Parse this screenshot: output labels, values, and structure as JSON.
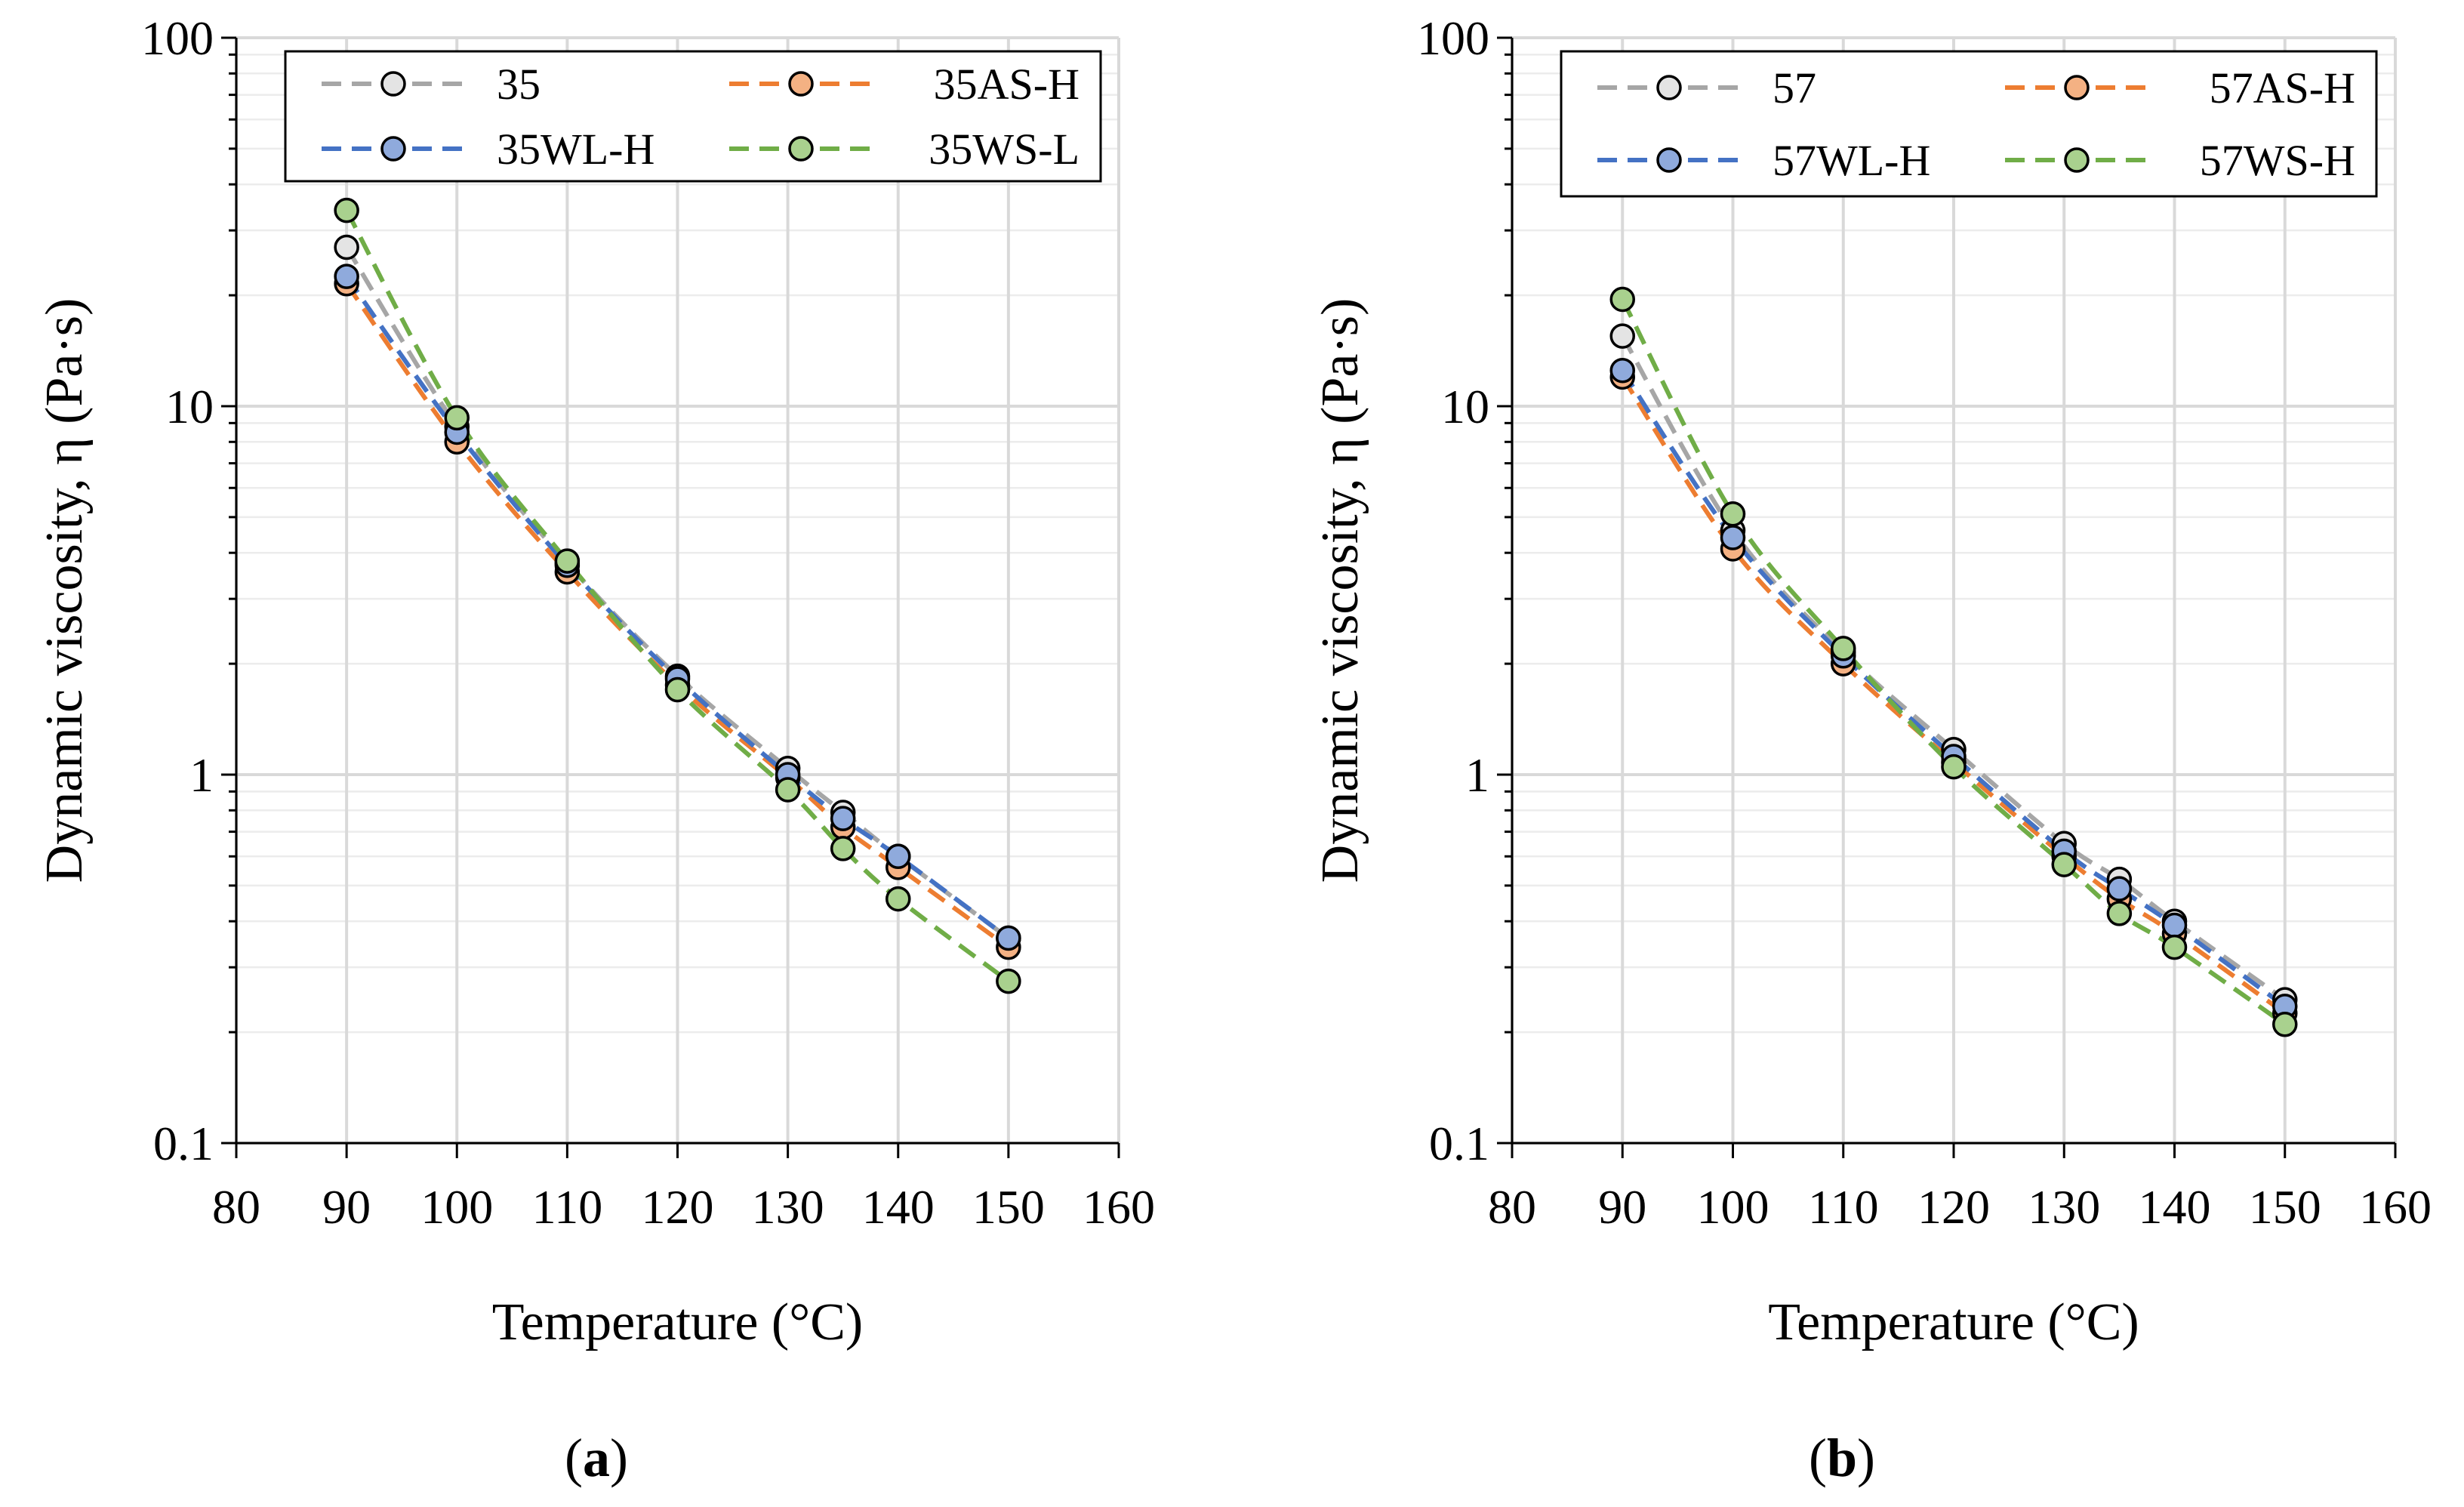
{
  "chart_data": [
    {
      "type": "line",
      "panel_label": "(a)",
      "panel_letter": "a",
      "title": "",
      "xlabel": "Temperature (°C)",
      "ylabel": "Dynamic viscosity, η (Pa·s)",
      "xlim": [
        80,
        160
      ],
      "ylim": [
        0.1,
        100
      ],
      "yscale": "log",
      "xticks": [
        "80",
        "90",
        "100",
        "110",
        "120",
        "130",
        "140",
        "150",
        "160"
      ],
      "yticks": [
        "0.1",
        "1",
        "10",
        "100"
      ],
      "grid": true,
      "legend_position": "top",
      "x": [
        90,
        100,
        110,
        120,
        130,
        135,
        140,
        150
      ],
      "series": [
        {
          "name": "35",
          "color": "#a6a6a6",
          "fill": "#e4e4e4",
          "values": [
            27,
            8.8,
            3.75,
            1.85,
            1.04,
            0.79,
            0.6,
            0.36
          ]
        },
        {
          "name": "35AS-H",
          "color": "#ed7d31",
          "fill": "#f4b183",
          "values": [
            21.5,
            8.0,
            3.55,
            1.75,
            0.98,
            0.72,
            0.56,
            0.34
          ]
        },
        {
          "name": "35WL-H",
          "color": "#4472c4",
          "fill": "#8faadc",
          "values": [
            22.5,
            8.5,
            3.7,
            1.82,
            1.0,
            0.76,
            0.6,
            0.36
          ]
        },
        {
          "name": "35WS-L",
          "color": "#70ad47",
          "fill": "#a9d18e",
          "values": [
            34,
            9.3,
            3.8,
            1.7,
            0.91,
            0.63,
            0.46,
            0.275
          ]
        }
      ]
    },
    {
      "type": "line",
      "panel_label": "(b)",
      "panel_letter": "b",
      "title": "",
      "xlabel": "Temperature (°C)",
      "ylabel": "Dynamic viscosity, η (Pa·s)",
      "xlim": [
        80,
        160
      ],
      "ylim": [
        0.1,
        100
      ],
      "yscale": "log",
      "xticks": [
        "80",
        "90",
        "100",
        "110",
        "120",
        "130",
        "140",
        "150",
        "160"
      ],
      "yticks": [
        "0.1",
        "1",
        "10",
        "100"
      ],
      "grid": true,
      "legend_position": "top",
      "x": [
        90,
        100,
        110,
        120,
        130,
        135,
        140,
        150
      ],
      "series": [
        {
          "name": "57",
          "color": "#a6a6a6",
          "fill": "#e4e4e4",
          "values": [
            15.5,
            4.6,
            2.15,
            1.17,
            0.65,
            0.52,
            0.4,
            0.245
          ]
        },
        {
          "name": "57AS-H",
          "color": "#ed7d31",
          "fill": "#f4b183",
          "values": [
            12.0,
            4.1,
            2.0,
            1.08,
            0.6,
            0.46,
            0.37,
            0.225
          ]
        },
        {
          "name": "57WL-H",
          "color": "#4472c4",
          "fill": "#8faadc",
          "values": [
            12.5,
            4.4,
            2.1,
            1.12,
            0.62,
            0.49,
            0.39,
            0.235
          ]
        },
        {
          "name": "57WS-H",
          "color": "#70ad47",
          "fill": "#a9d18e",
          "values": [
            19.5,
            5.1,
            2.2,
            1.05,
            0.57,
            0.42,
            0.34,
            0.21
          ]
        }
      ]
    }
  ]
}
